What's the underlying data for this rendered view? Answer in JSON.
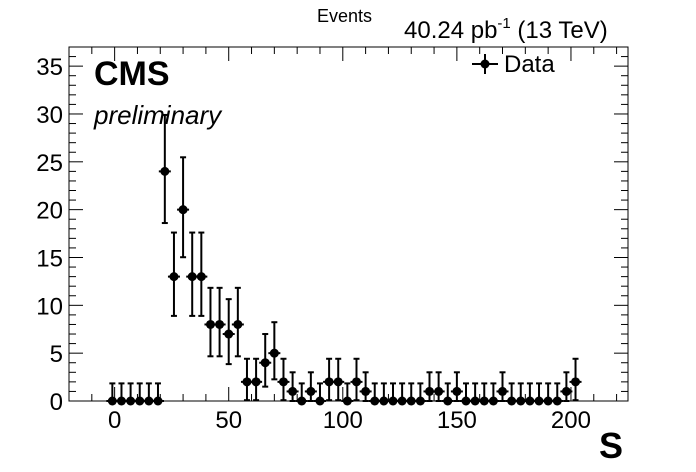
{
  "chart_data": {
    "type": "scatter",
    "ylabel": "Events",
    "xlabel": "S",
    "luminosity_label": "40.24 pb",
    "luminosity_sup": "-1",
    "energy_label": " (13 TeV)",
    "experiment_label": "CMS",
    "status_label": "preliminary",
    "legend": {
      "placement": "top-right",
      "entries": [
        "Data"
      ]
    },
    "xlim": [
      -20,
      225
    ],
    "ylim": [
      0,
      37
    ],
    "xticks": [
      0,
      50,
      100,
      150,
      200
    ],
    "yticks": [
      0,
      5,
      10,
      15,
      20,
      25,
      30,
      35
    ],
    "grid": false,
    "marker_color": "#000000",
    "series": [
      {
        "name": "Data",
        "points": [
          {
            "x": -1,
            "y": 0
          },
          {
            "x": 3,
            "y": 0
          },
          {
            "x": 7,
            "y": 0
          },
          {
            "x": 11,
            "y": 0
          },
          {
            "x": 15,
            "y": 0
          },
          {
            "x": 19,
            "y": 0
          },
          {
            "x": 22,
            "y": 24
          },
          {
            "x": 26,
            "y": 13
          },
          {
            "x": 30,
            "y": 20
          },
          {
            "x": 34,
            "y": 13
          },
          {
            "x": 38,
            "y": 13
          },
          {
            "x": 42,
            "y": 8
          },
          {
            "x": 46,
            "y": 8
          },
          {
            "x": 50,
            "y": 7
          },
          {
            "x": 54,
            "y": 8
          },
          {
            "x": 58,
            "y": 2
          },
          {
            "x": 62,
            "y": 2
          },
          {
            "x": 66,
            "y": 4
          },
          {
            "x": 70,
            "y": 5
          },
          {
            "x": 74,
            "y": 2
          },
          {
            "x": 78,
            "y": 1
          },
          {
            "x": 82,
            "y": 0
          },
          {
            "x": 86,
            "y": 1
          },
          {
            "x": 90,
            "y": 0
          },
          {
            "x": 94,
            "y": 2
          },
          {
            "x": 98,
            "y": 2
          },
          {
            "x": 102,
            "y": 0
          },
          {
            "x": 106,
            "y": 2
          },
          {
            "x": 110,
            "y": 1
          },
          {
            "x": 114,
            "y": 0
          },
          {
            "x": 118,
            "y": 0
          },
          {
            "x": 122,
            "y": 0
          },
          {
            "x": 126,
            "y": 0
          },
          {
            "x": 130,
            "y": 0
          },
          {
            "x": 134,
            "y": 0
          },
          {
            "x": 138,
            "y": 1
          },
          {
            "x": 142,
            "y": 1
          },
          {
            "x": 146,
            "y": 0
          },
          {
            "x": 150,
            "y": 1
          },
          {
            "x": 154,
            "y": 0
          },
          {
            "x": 158,
            "y": 0
          },
          {
            "x": 162,
            "y": 0
          },
          {
            "x": 166,
            "y": 0
          },
          {
            "x": 170,
            "y": 1
          },
          {
            "x": 174,
            "y": 0
          },
          {
            "x": 178,
            "y": 0
          },
          {
            "x": 182,
            "y": 0
          },
          {
            "x": 186,
            "y": 0
          },
          {
            "x": 190,
            "y": 0
          },
          {
            "x": 194,
            "y": 0
          },
          {
            "x": 198,
            "y": 1
          },
          {
            "x": 202,
            "y": 2
          }
        ]
      }
    ]
  }
}
